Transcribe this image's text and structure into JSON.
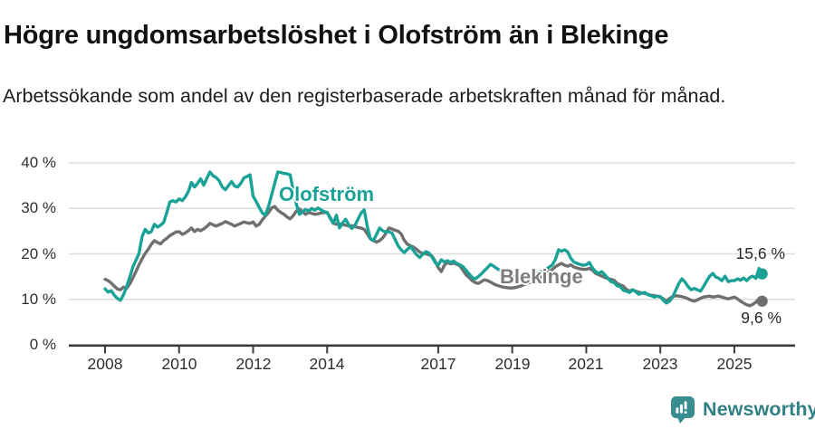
{
  "header": {
    "title": "Högre ungdomsarbetslöshet i Olofström än i Blekinge",
    "subtitle": "Arbetssökande som andel av den registerbaserade arbetskraften månad för månad."
  },
  "footer": {
    "brand": "Newsworthy"
  },
  "colors": {
    "olofstrom_teal": "#1aa296",
    "blekinge_gray": "#6f6f6f",
    "grid": "#dcdcdc",
    "axis": "#3c3c3c",
    "label_text": "#2f2f2f",
    "logo_teal": "#3a8d8f",
    "brand_text_teal": "#318083"
  },
  "chart_data": {
    "type": "line",
    "title": "Högre ungdomsarbetslöshet i Olofström än i Blekinge",
    "subtitle": "Arbetssökande som andel av den registerbaserade arbetskraften månad för månad.",
    "unit": "%",
    "grid": true,
    "legend": "inline-labels",
    "ylim": [
      0,
      40
    ],
    "y_axis": {
      "ticks": [
        {
          "value": 0,
          "label": "0 %"
        },
        {
          "value": 10,
          "label": "10 %"
        },
        {
          "value": 20,
          "label": "20 %"
        },
        {
          "value": 30,
          "label": "30 %"
        },
        {
          "value": 40,
          "label": "40 %"
        }
      ]
    },
    "x_axis": {
      "frequency": "monthly",
      "start": "2008-01",
      "end": "2025-10",
      "tick_years": [
        2008,
        2010,
        2012,
        2014,
        2017,
        2019,
        2021,
        2023,
        2025
      ]
    },
    "series": [
      {
        "name": "Olofström",
        "slug": "olofstrom",
        "color": "#1aa296",
        "end_label": "15,6 %",
        "end_value": 15.6,
        "values": [
          12.3,
          11.6,
          11.9,
          10.9,
          10.2,
          9.8,
          11.0,
          12.8,
          14.9,
          17.1,
          18.6,
          20.1,
          23.8,
          25.4,
          24.6,
          24.9,
          26.5,
          25.9,
          26.3,
          26.9,
          29.0,
          31.4,
          31.7,
          31.4,
          32.1,
          31.7,
          32.5,
          33.7,
          35.7,
          34.7,
          35.5,
          36.5,
          35.1,
          36.6,
          38.0,
          37.2,
          36.8,
          36.1,
          34.7,
          34.1,
          35.0,
          35.9,
          34.9,
          34.7,
          35.5,
          36.7,
          37.0,
          37.4,
          32.7,
          31.5,
          30.2,
          29.0,
          28.5,
          30.5,
          33.0,
          35.5,
          38.0,
          37.9,
          37.7,
          37.6,
          37.4,
          34.0,
          31.0,
          28.7,
          29.2,
          29.8,
          29.4,
          30.0,
          29.6,
          30.1,
          29.7,
          29.3,
          29.1,
          27.8,
          26.7,
          28.5,
          25.7,
          26.8,
          27.6,
          26.4,
          25.6,
          26.2,
          27.6,
          29.0,
          29.7,
          26.0,
          23.3,
          22.9,
          24.3,
          25.7,
          25.1,
          24.8,
          24.9,
          24.6,
          23.2,
          21.8,
          20.9,
          20.3,
          21.0,
          21.6,
          20.7,
          19.8,
          19.2,
          19.9,
          20.5,
          20.2,
          19.3,
          18.1,
          17.5,
          18.7,
          18.2,
          18.5,
          18.1,
          18.4,
          17.9,
          17.6,
          17.2,
          16.4,
          15.6,
          14.8,
          14.5,
          15.0,
          15.6,
          16.3,
          17.0,
          17.7,
          17.3,
          16.8,
          16.4,
          16.1,
          15.8,
          15.5,
          15.3,
          15.1,
          15.0,
          15.3,
          15.6,
          15.4,
          15.2,
          15.4,
          15.7,
          16.0,
          16.3,
          16.6,
          17.1,
          17.6,
          18.8,
          20.9,
          20.6,
          20.9,
          20.4,
          19.0,
          18.2,
          17.9,
          17.7,
          17.5,
          17.6,
          18.1,
          16.9,
          16.1,
          15.7,
          16.1,
          15.4,
          14.6,
          13.9,
          13.7,
          13.0,
          12.8,
          12.0,
          11.8,
          11.5,
          12.1,
          11.7,
          11.1,
          11.4,
          11.5,
          11.0,
          10.8,
          10.5,
          10.7,
          10.6,
          9.8,
          9.2,
          9.6,
          10.5,
          12.0,
          13.5,
          14.5,
          13.8,
          12.8,
          12.1,
          12.4,
          12.1,
          11.8,
          12.8,
          14.0,
          15.1,
          15.7,
          14.9,
          14.6,
          14.1,
          15.1,
          13.9,
          14.1,
          14.1,
          14.5,
          14.2,
          14.7,
          14.1,
          14.8,
          15.1,
          14.6,
          16.8,
          15.6
        ]
      },
      {
        "name": "Blekinge",
        "slug": "blekinge",
        "color": "#6f6f6f",
        "end_label": "9,6 %",
        "end_value": 9.6,
        "values": [
          14.4,
          14.1,
          13.6,
          12.9,
          12.3,
          12.1,
          12.7,
          12.4,
          13.4,
          14.7,
          16.1,
          17.6,
          18.9,
          20.1,
          21.0,
          22.1,
          22.9,
          22.5,
          22.2,
          22.9,
          23.4,
          24.0,
          24.4,
          24.8,
          24.9,
          24.3,
          24.6,
          25.1,
          25.7,
          24.9,
          25.4,
          25.1,
          25.5,
          26.0,
          26.7,
          26.4,
          26.1,
          26.4,
          26.7,
          27.1,
          26.8,
          26.5,
          26.1,
          26.4,
          26.7,
          27.0,
          26.8,
          26.7,
          27.0,
          26.1,
          26.5,
          27.5,
          28.3,
          29.1,
          30.1,
          30.4,
          29.6,
          29.1,
          28.7,
          28.1,
          27.7,
          28.4,
          29.4,
          29.9,
          29.3,
          28.7,
          29.1,
          28.9,
          28.7,
          28.8,
          29.0,
          29.1,
          29.1,
          28.0,
          26.7,
          26.5,
          26.6,
          26.4,
          26.3,
          26.1,
          26.2,
          26.0,
          25.8,
          25.7,
          25.4,
          24.4,
          23.3,
          22.9,
          22.6,
          22.9,
          23.5,
          24.5,
          25.7,
          25.5,
          25.2,
          25.0,
          24.4,
          23.0,
          22.1,
          21.8,
          21.5,
          21.0,
          20.4,
          20.1,
          20.0,
          19.8,
          19.5,
          18.4,
          17.0,
          16.1,
          17.5,
          18.1,
          17.8,
          18.0,
          17.7,
          17.4,
          16.4,
          15.4,
          14.8,
          14.1,
          13.7,
          13.5,
          13.9,
          14.3,
          14.1,
          13.8,
          13.4,
          13.1,
          12.9,
          12.7,
          12.6,
          12.5,
          12.5,
          12.6,
          12.8,
          13.0,
          13.3,
          13.6,
          13.8,
          14.1,
          14.4,
          14.7,
          15.1,
          15.6,
          16.1,
          16.6,
          17.2,
          17.6,
          17.9,
          17.5,
          17.3,
          17.6,
          17.1,
          16.9,
          16.7,
          16.6,
          16.6,
          16.8,
          16.4,
          15.7,
          15.4,
          15.1,
          14.8,
          14.6,
          14.4,
          14.2,
          13.5,
          13.2,
          12.9,
          12.2,
          11.8,
          12.1,
          11.8,
          11.6,
          11.4,
          11.3,
          11.1,
          10.9,
          10.8,
          10.7,
          10.5,
          10.1,
          9.6,
          10.2,
          10.6,
          10.8,
          10.7,
          10.6,
          10.4,
          10.1,
          9.8,
          9.6,
          9.9,
          10.2,
          10.5,
          10.6,
          10.7,
          10.5,
          10.6,
          10.7,
          10.5,
          10.3,
          10.1,
          10.3,
          10.5,
          10.1,
          9.6,
          9.2,
          8.8,
          8.6,
          8.9,
          9.4,
          10.1,
          9.6
        ]
      }
    ]
  }
}
